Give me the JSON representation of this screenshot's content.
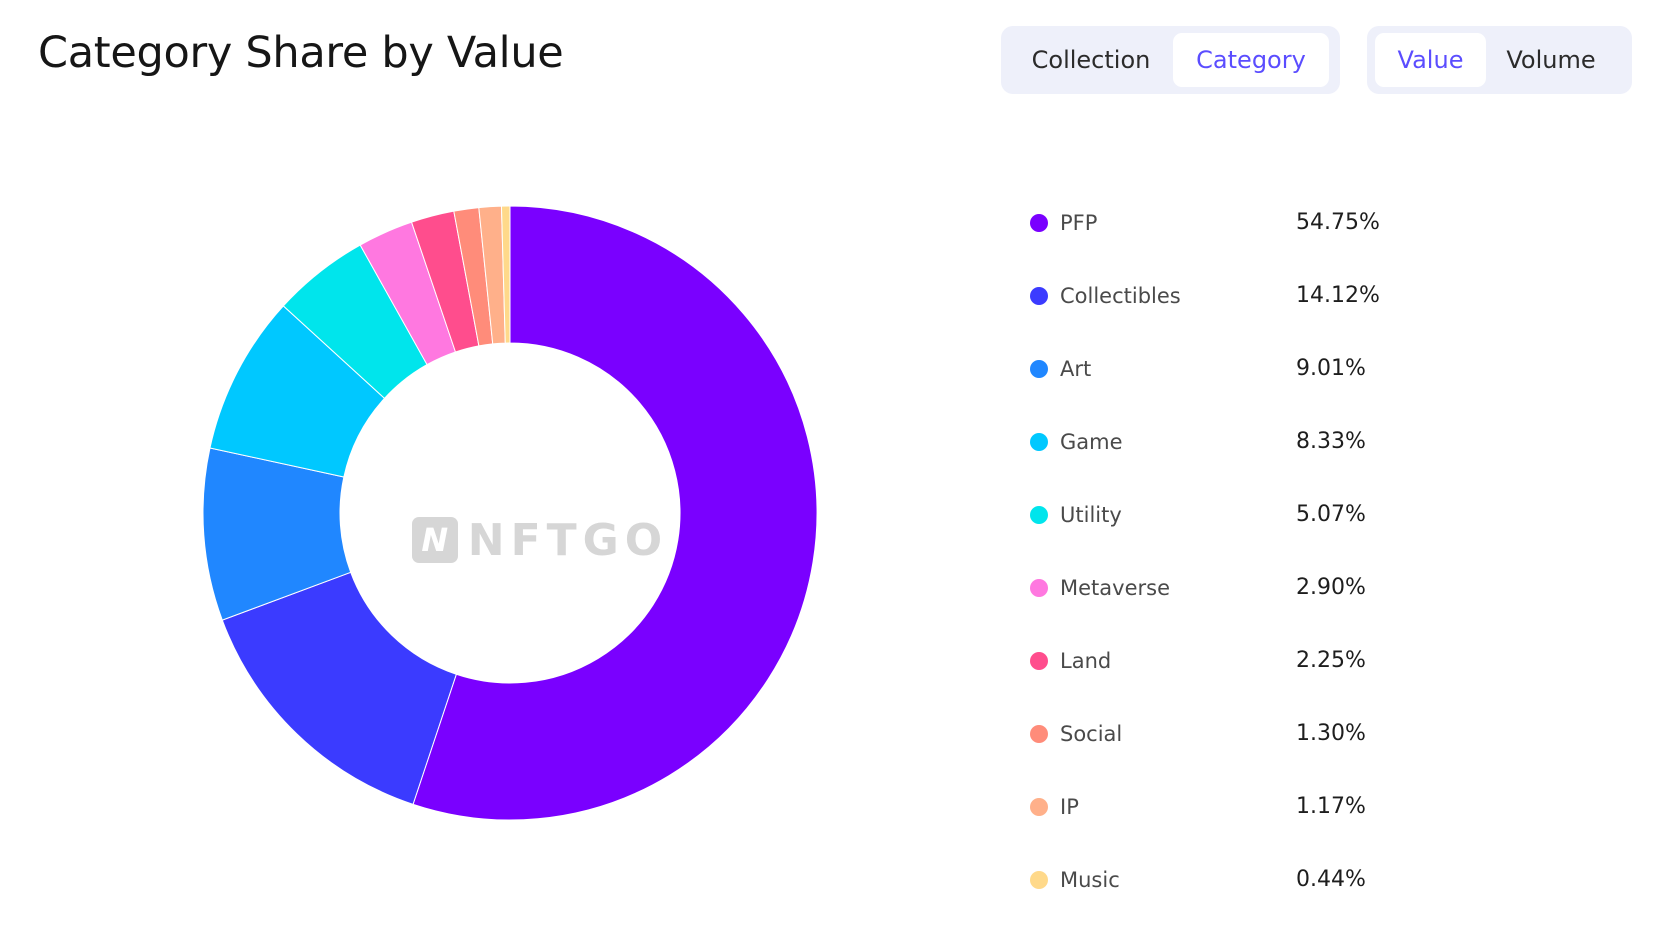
{
  "header": {
    "title": "Category Share by Value"
  },
  "toggles": {
    "group_by": {
      "options": [
        "Collection",
        "Category"
      ],
      "selected": "Category"
    },
    "metric": {
      "options": [
        "Value",
        "Volume"
      ],
      "selected": "Value"
    }
  },
  "watermark": {
    "icon_letter": "N",
    "text": "NFTGO"
  },
  "colors": {
    "accent": "#5b4dff",
    "toggle_bg": "#eef0fa"
  },
  "chart_data": {
    "type": "pie",
    "variant": "donut",
    "title": "Category Share by Value",
    "legend_position": "right",
    "categories": [
      "PFP",
      "Collectibles",
      "Art",
      "Game",
      "Utility",
      "Metaverse",
      "Land",
      "Social",
      "IP",
      "Music"
    ],
    "values": [
      54.75,
      14.12,
      9.01,
      8.33,
      5.07,
      2.9,
      2.25,
      1.3,
      1.17,
      0.44
    ],
    "value_labels": [
      "54.75%",
      "14.12%",
      "9.01%",
      "8.33%",
      "5.07%",
      "2.90%",
      "2.25%",
      "1.30%",
      "1.17%",
      "0.44%"
    ],
    "colors": [
      "#7a00ff",
      "#3b3bff",
      "#2087ff",
      "#00c8ff",
      "#00e5ec",
      "#ff78e0",
      "#ff4d8d",
      "#ff8c7a",
      "#ffb08a",
      "#ffd98a"
    ]
  }
}
